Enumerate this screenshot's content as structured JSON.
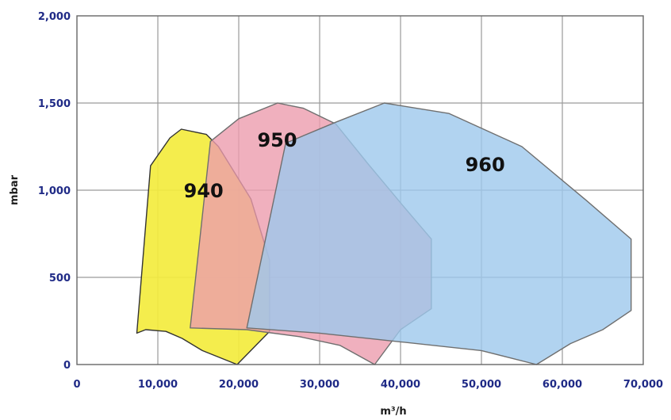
{
  "chart_data": {
    "type": "area",
    "xlabel": "m³/h",
    "ylabel": "mbar",
    "xlim": [
      0,
      70000
    ],
    "ylim": [
      0,
      2000
    ],
    "grid": true,
    "x_ticks": [
      0,
      10000,
      20000,
      30000,
      40000,
      50000,
      60000,
      70000
    ],
    "x_tick_labels": [
      "0",
      "10,000",
      "20,000",
      "30,000",
      "40,000",
      "50,000",
      "60,000",
      "70,000"
    ],
    "y_ticks": [
      0,
      500,
      1000,
      1500,
      2000
    ],
    "y_tick_labels": [
      "0",
      "500",
      "1,000",
      "1,500",
      "2,000"
    ],
    "colors": {
      "tick_text": "#1f2a86",
      "grid": "#9a9a9a",
      "frame": "#666666"
    },
    "series": [
      {
        "name": "940",
        "color": "#f3ec3e",
        "label_at": [
          13200,
          1000
        ],
        "points": [
          [
            7400,
            180
          ],
          [
            8500,
            200
          ],
          [
            11000,
            190
          ],
          [
            13000,
            150
          ],
          [
            15500,
            80
          ],
          [
            19800,
            0
          ],
          [
            23800,
            190
          ],
          [
            23800,
            600
          ],
          [
            21500,
            950
          ],
          [
            17500,
            1250
          ],
          [
            16000,
            1320
          ],
          [
            12900,
            1350
          ],
          [
            11500,
            1300
          ],
          [
            9100,
            1140
          ]
        ]
      },
      {
        "name": "950",
        "color": "#ec9cae",
        "label_at": [
          22300,
          1290
        ],
        "points": [
          [
            16500,
            1280
          ],
          [
            20000,
            1410
          ],
          [
            24800,
            1500
          ],
          [
            28000,
            1470
          ],
          [
            32000,
            1380
          ],
          [
            36000,
            1150
          ],
          [
            40500,
            900
          ],
          [
            43800,
            720
          ],
          [
            43800,
            320
          ],
          [
            40000,
            200
          ],
          [
            36800,
            0
          ],
          [
            32500,
            110
          ],
          [
            27500,
            160
          ],
          [
            21000,
            200
          ],
          [
            14000,
            210
          ]
        ]
      },
      {
        "name": "960",
        "color": "#9dc8ec",
        "label_at": [
          48000,
          1150
        ],
        "points": [
          [
            25800,
            1270
          ],
          [
            32000,
            1390
          ],
          [
            38000,
            1500
          ],
          [
            46000,
            1440
          ],
          [
            55000,
            1250
          ],
          [
            63000,
            940
          ],
          [
            68500,
            720
          ],
          [
            68500,
            310
          ],
          [
            65000,
            200
          ],
          [
            61000,
            120
          ],
          [
            56800,
            0
          ],
          [
            50000,
            80
          ],
          [
            40000,
            130
          ],
          [
            30000,
            180
          ],
          [
            21000,
            210
          ]
        ]
      }
    ]
  }
}
